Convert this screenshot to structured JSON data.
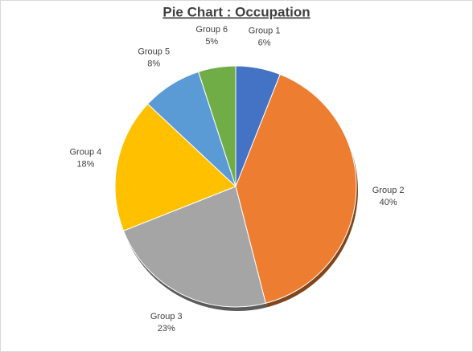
{
  "chart_data": {
    "type": "pie",
    "title": "Pie Chart : Occupation",
    "categories": [
      "Group 1",
      "Group 2",
      "Group 3",
      "Group 4",
      "Group 5",
      "Group 6"
    ],
    "values": [
      6,
      40,
      23,
      18,
      8,
      5
    ],
    "value_labels": [
      "6%",
      "40%",
      "23%",
      "18%",
      "8%",
      "5%"
    ],
    "colors": [
      "#4472c4",
      "#ed7d31",
      "#a5a5a5",
      "#ffc000",
      "#5b9bd5",
      "#70ad47"
    ]
  }
}
